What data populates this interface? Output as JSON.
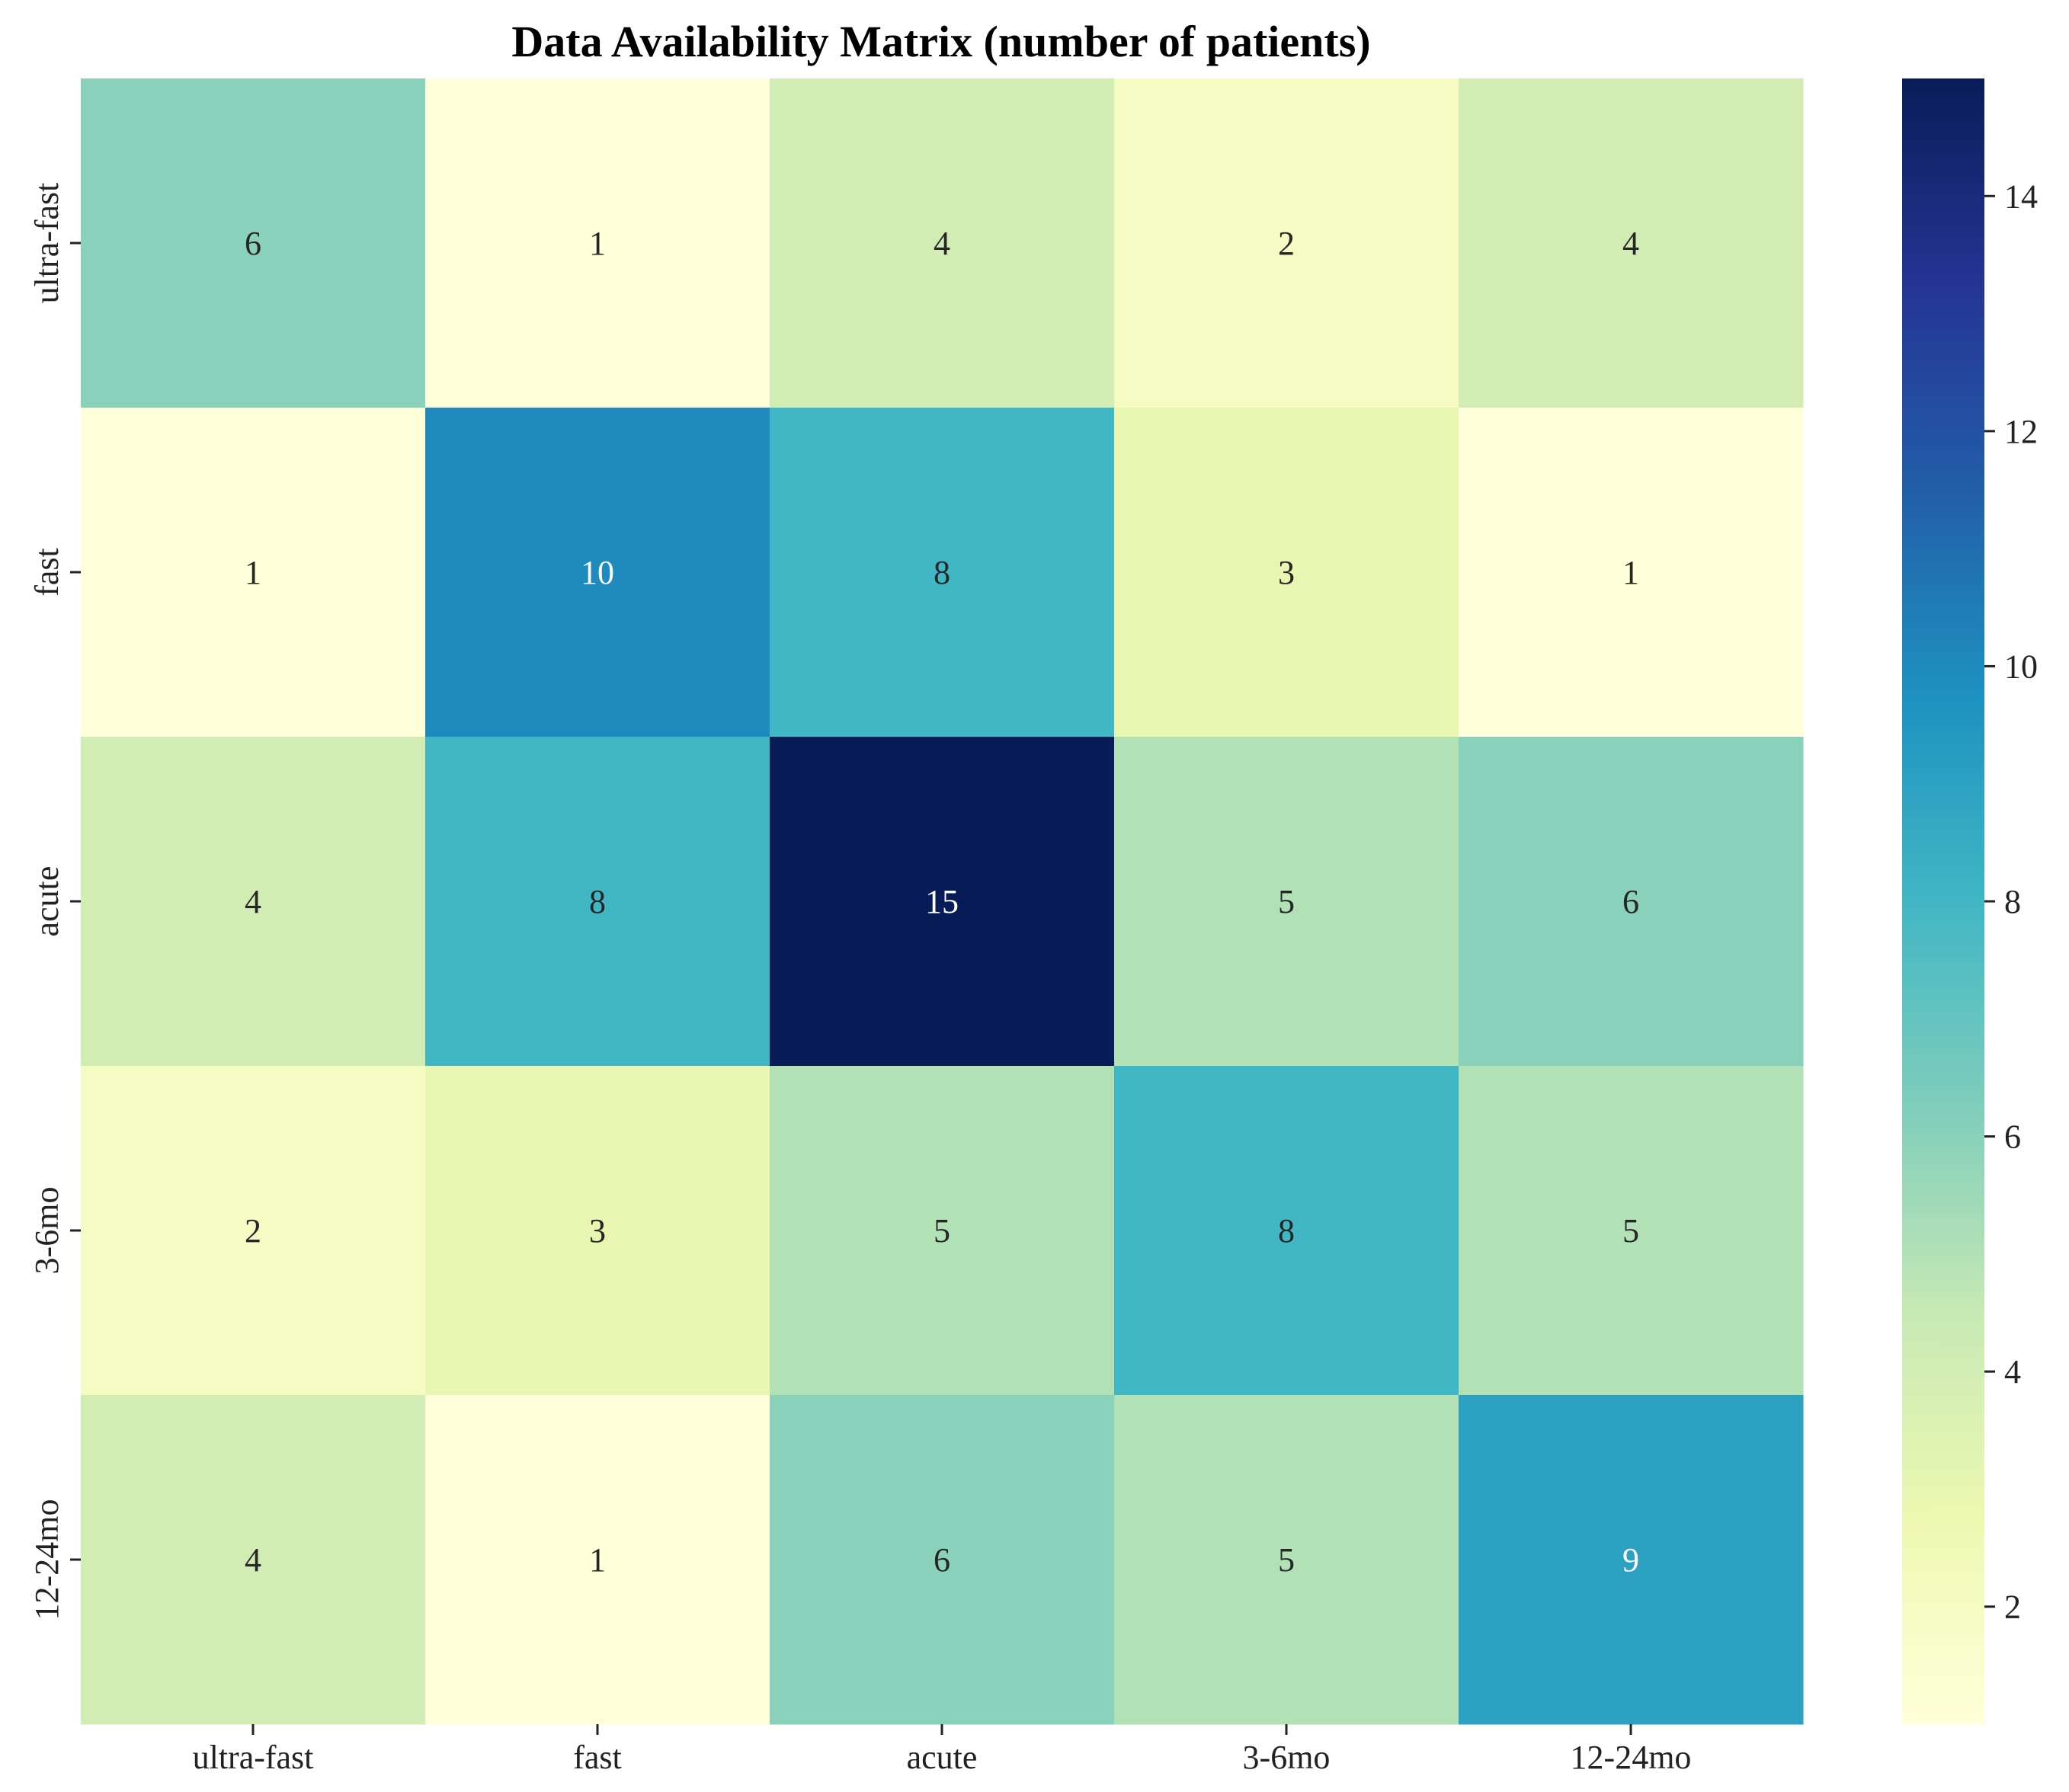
{
  "chart_data": {
    "type": "heatmap",
    "title": "Data Availability Matrix (number of patients)",
    "xlabel": "",
    "ylabel": "",
    "x_categories": [
      "ultra-fast",
      "fast",
      "acute",
      "3-6mo",
      "12-24mo"
    ],
    "y_categories": [
      "ultra-fast",
      "fast",
      "acute",
      "3-6mo",
      "12-24mo"
    ],
    "values": [
      [
        6,
        1,
        4,
        2,
        4
      ],
      [
        1,
        10,
        8,
        3,
        1
      ],
      [
        4,
        8,
        15,
        5,
        6
      ],
      [
        2,
        3,
        5,
        8,
        5
      ],
      [
        4,
        1,
        6,
        5,
        9
      ]
    ],
    "annotations": true,
    "colormap": "YlGnBu",
    "colorbar": {
      "range": [
        1,
        15
      ],
      "ticks": [
        2,
        4,
        6,
        8,
        10,
        12,
        14
      ]
    },
    "colors": {
      "text_dark": "#262626",
      "text_light": "#ffffff",
      "background": "#ffffff"
    }
  }
}
